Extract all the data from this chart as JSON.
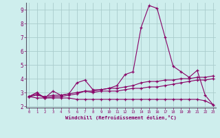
{
  "background_color": "#ceeeed",
  "grid_color": "#aacccc",
  "line_color": "#880066",
  "xlim": [
    0,
    23
  ],
  "ylim": [
    1.9,
    9.5
  ],
  "xticks": [
    0,
    1,
    2,
    3,
    4,
    5,
    6,
    7,
    8,
    9,
    10,
    11,
    12,
    13,
    14,
    15,
    16,
    17,
    18,
    19,
    20,
    21,
    22,
    23
  ],
  "yticks": [
    2,
    3,
    4,
    5,
    6,
    7,
    8,
    9
  ],
  "xlabel": "Windchill (Refroidissement éolien,°C)",
  "series": [
    [
      2.7,
      3.0,
      2.6,
      3.1,
      2.8,
      2.9,
      3.7,
      3.9,
      3.2,
      3.2,
      3.3,
      3.5,
      4.3,
      4.5,
      7.7,
      9.3,
      9.1,
      7.0,
      4.9,
      4.5,
      4.1,
      4.6,
      2.8,
      2.1
    ],
    [
      2.7,
      2.9,
      2.6,
      2.7,
      2.7,
      2.8,
      2.9,
      3.1,
      3.0,
      3.1,
      3.1,
      3.1,
      3.2,
      3.3,
      3.3,
      3.4,
      3.4,
      3.5,
      3.6,
      3.7,
      3.8,
      3.9,
      3.9,
      4.0
    ],
    [
      2.7,
      2.8,
      2.7,
      2.8,
      2.8,
      2.9,
      3.0,
      3.1,
      3.1,
      3.2,
      3.3,
      3.3,
      3.4,
      3.5,
      3.7,
      3.8,
      3.8,
      3.9,
      3.9,
      4.0,
      4.0,
      4.1,
      4.1,
      4.2
    ],
    [
      2.7,
      2.6,
      2.6,
      2.6,
      2.6,
      2.6,
      2.5,
      2.5,
      2.5,
      2.5,
      2.5,
      2.5,
      2.5,
      2.5,
      2.5,
      2.5,
      2.5,
      2.5,
      2.5,
      2.5,
      2.5,
      2.5,
      2.4,
      2.1
    ]
  ]
}
